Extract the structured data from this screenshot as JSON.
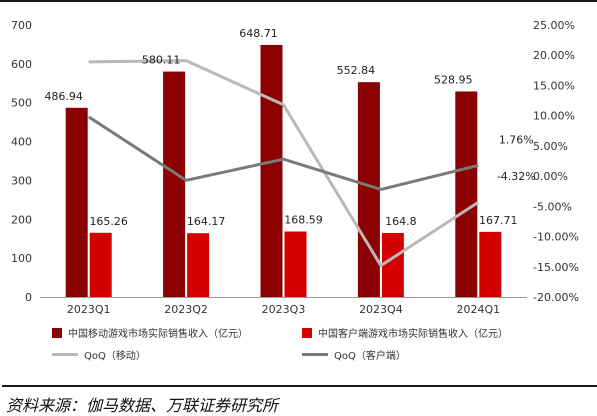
{
  "chart_data": {
    "type": "bar",
    "categories": [
      "2023Q1",
      "2023Q2",
      "2023Q3",
      "2023Q4",
      "2024Q1"
    ],
    "series": [
      {
        "name": "中国移动游戏市场实际销售收入（亿元）",
        "type": "bar",
        "axis": "left",
        "color": "#8b0000",
        "values": [
          486.94,
          580.11,
          648.71,
          552.84,
          528.95
        ],
        "labels": [
          "486.94",
          "580.11",
          "648.71",
          "552.84",
          "528.95"
        ]
      },
      {
        "name": "中国客户端游戏市场实际销售收入（亿元）",
        "type": "bar",
        "axis": "left",
        "color": "#d40000",
        "values": [
          165.26,
          164.17,
          168.59,
          164.8,
          167.71
        ],
        "labels": [
          "165.26",
          "164.17",
          "168.59",
          "164.8",
          "167.71"
        ]
      },
      {
        "name": "QoQ（移动）",
        "type": "line",
        "axis": "right",
        "color": "#b9b9b9",
        "values": [
          18.9,
          19.1,
          11.8,
          -14.8,
          -4.32
        ],
        "labels": [
          "",
          "",
          "",
          "",
          "-4.32%"
        ]
      },
      {
        "name": "QoQ（客户端）",
        "type": "line",
        "axis": "right",
        "color": "#7a7a7a",
        "values": [
          9.8,
          -0.7,
          2.8,
          -2.2,
          1.76
        ],
        "labels": [
          "",
          "",
          "",
          "",
          "1.76%"
        ]
      }
    ],
    "ylim_left": [
      0,
      700
    ],
    "left_ticks": [
      "0",
      "100",
      "200",
      "300",
      "400",
      "500",
      "600",
      "700"
    ],
    "ylim_right": [
      -20,
      25
    ],
    "right_ticks": [
      "-20.00%",
      "-15.00%",
      "-10.00%",
      "-5.00%",
      "0.00%",
      "5.00%",
      "10.00%",
      "15.00%",
      "20.00%",
      "25.00%"
    ],
    "grid": false,
    "legend_position": "bottom"
  },
  "source": "资料来源：伽马数据、万联证券研究所"
}
